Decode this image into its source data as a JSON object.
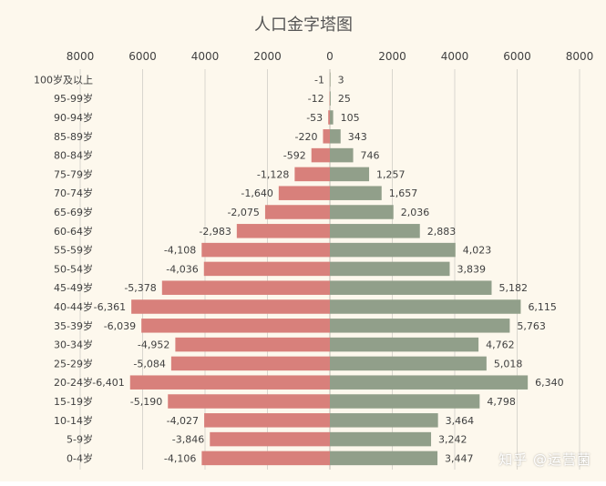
{
  "chart_data": {
    "type": "bar",
    "orientation": "horizontal",
    "title": "人口金字塔图",
    "xlim": [
      -8000,
      8000
    ],
    "x_ticks": [
      -8000,
      -6000,
      -4000,
      -2000,
      0,
      2000,
      4000,
      6000,
      8000
    ],
    "x_tick_labels": [
      "8000",
      "6000",
      "4000",
      "2000",
      "0",
      "2000",
      "4000",
      "6000",
      "8000"
    ],
    "x_axis_position": "top",
    "grid": true,
    "legend": "none",
    "categories": [
      "100岁及以上",
      "95-99岁",
      "90-94岁",
      "85-89岁",
      "80-84岁",
      "75-79岁",
      "70-74岁",
      "65-69岁",
      "60-64岁",
      "55-59岁",
      "50-54岁",
      "45-49岁",
      "40-44岁",
      "35-39岁",
      "30-34岁",
      "25-29岁",
      "20-24岁",
      "15-19岁",
      "10-14岁",
      "5-9岁",
      "0-4岁"
    ],
    "series": [
      {
        "color": "#d8807b",
        "values": [
          -1,
          -12,
          -53,
          -220,
          -592,
          -1128,
          -1640,
          -2075,
          -2983,
          -4108,
          -4036,
          -5378,
          -6361,
          -6039,
          -4952,
          -5084,
          -6401,
          -5190,
          -4027,
          -3846,
          -4106
        ],
        "labels": [
          "-1",
          "-12",
          "-53",
          "-220",
          "-592",
          "-1,128",
          "-1,640",
          "-2,075",
          "-2,983",
          "-4,108",
          "-4,036",
          "-5,378",
          "-6,361",
          "-6,039",
          "-4,952",
          "-5,084",
          "-6,401",
          "-5,190",
          "-4,027",
          "-3,846",
          "-4,106"
        ]
      },
      {
        "color": "#919f8a",
        "values": [
          3,
          25,
          105,
          343,
          746,
          1257,
          1657,
          2036,
          2883,
          4023,
          3839,
          5182,
          6115,
          5763,
          4762,
          5018,
          6340,
          4798,
          3464,
          3242,
          3447
        ],
        "labels": [
          "3",
          "25",
          "105",
          "343",
          "746",
          "1,257",
          "1,657",
          "2,036",
          "2,883",
          "4,023",
          "3,839",
          "5,182",
          "6,115",
          "5,763",
          "4,762",
          "5,018",
          "6,340",
          "4,798",
          "3,464",
          "3,242",
          "3,447"
        ]
      }
    ]
  },
  "watermark": "知乎 @运营菌",
  "colors": {
    "background": "#fdf8ed",
    "grid": "#d9d6ce",
    "text": "#404040",
    "title": "#555555"
  }
}
